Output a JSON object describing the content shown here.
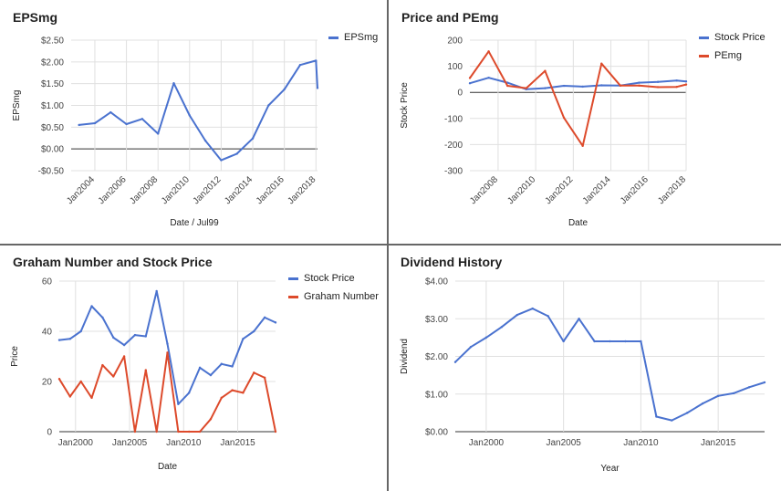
{
  "colors": {
    "blue": "#4a72cf",
    "red": "#dd4a2b",
    "grid": "#e0e0e0",
    "zero": "#333333"
  },
  "chart_data": [
    {
      "type": "line",
      "title": "EPSmg",
      "xlabel": "Date / Jul99",
      "ylabel": "EPSmg",
      "xlim": [
        2002.5,
        2018.1
      ],
      "ylim": [
        -0.5,
        2.5
      ],
      "x_ticks": [
        {
          "v": 2004,
          "label": "Jan2004"
        },
        {
          "v": 2006,
          "label": "Jan2006"
        },
        {
          "v": 2008,
          "label": "Jan2008"
        },
        {
          "v": 2010,
          "label": "Jan2010"
        },
        {
          "v": 2012,
          "label": "Jan2012"
        },
        {
          "v": 2014,
          "label": "Jan2014"
        },
        {
          "v": 2016,
          "label": "Jan2016"
        },
        {
          "v": 2018,
          "label": "Jan2018"
        }
      ],
      "y_ticks": [
        {
          "v": 2.5,
          "label": "$2.50"
        },
        {
          "v": 2.0,
          "label": "$2.00"
        },
        {
          "v": 1.5,
          "label": "$1.50"
        },
        {
          "v": 1.0,
          "label": "$1.00"
        },
        {
          "v": 0.5,
          "label": "$0.50"
        },
        {
          "v": 0.0,
          "label": "$0.00"
        },
        {
          "v": -0.5,
          "label": "-$0.50"
        }
      ],
      "series": [
        {
          "name": "EPSmg",
          "color": "#4a72cf",
          "x": [
            2003,
            2004,
            2005,
            2006,
            2007,
            2008,
            2009,
            2010,
            2011,
            2012,
            2013,
            2014,
            2015,
            2016,
            2017,
            2018,
            2018.1
          ],
          "y": [
            0.55,
            0.59,
            0.84,
            0.57,
            0.69,
            0.35,
            1.51,
            0.77,
            0.19,
            -0.26,
            -0.11,
            0.24,
            1.0,
            1.37,
            1.93,
            2.03,
            1.4
          ]
        }
      ]
    },
    {
      "type": "line",
      "title": "Price and PEmg",
      "xlabel": "Date",
      "ylabel": "Stock Price",
      "xlim": [
        2006.5,
        2018.0
      ],
      "ylim": [
        -300,
        200
      ],
      "x_ticks": [
        {
          "v": 2008,
          "label": "Jan2008"
        },
        {
          "v": 2010,
          "label": "Jan2010"
        },
        {
          "v": 2012,
          "label": "Jan2012"
        },
        {
          "v": 2014,
          "label": "Jan2014"
        },
        {
          "v": 2016,
          "label": "Jan2016"
        },
        {
          "v": 2018,
          "label": "Jan2018"
        }
      ],
      "y_ticks": [
        {
          "v": 200,
          "label": "200"
        },
        {
          "v": 100,
          "label": "100"
        },
        {
          "v": 0,
          "label": "0"
        },
        {
          "v": -100,
          "label": "-100"
        },
        {
          "v": -200,
          "label": "-200"
        },
        {
          "v": -300,
          "label": "-300"
        }
      ],
      "series": [
        {
          "name": "Stock Price",
          "color": "#4a72cf",
          "x": [
            2006.5,
            2007.5,
            2008.5,
            2009.5,
            2010.5,
            2011.5,
            2012.5,
            2013.5,
            2014.5,
            2015.5,
            2016.5,
            2017.5,
            2018.0
          ],
          "y": [
            35,
            56,
            37,
            12,
            16,
            25,
            22,
            27,
            26,
            37,
            40,
            45,
            42
          ]
        },
        {
          "name": "PEmg",
          "color": "#dd4a2b",
          "x": [
            2006.5,
            2007.5,
            2008.5,
            2009.5,
            2010.5,
            2011.5,
            2012.5,
            2013.5,
            2014.5,
            2015.5,
            2016.5,
            2017.5,
            2018.0
          ],
          "y": [
            55,
            157,
            25,
            16,
            82,
            -97,
            -205,
            110,
            26,
            26,
            20,
            21,
            30
          ]
        }
      ]
    },
    {
      "type": "line",
      "title": "Graham Number and Stock Price",
      "xlabel": "Date",
      "ylabel": "Price",
      "xlim": [
        1998.5,
        2018.5
      ],
      "ylim": [
        0,
        60
      ],
      "x_ticks": [
        {
          "v": 2000,
          "label": "Jan2000"
        },
        {
          "v": 2005,
          "label": "Jan2005"
        },
        {
          "v": 2010,
          "label": "Jan2010"
        },
        {
          "v": 2015,
          "label": "Jan2015"
        }
      ],
      "y_ticks": [
        {
          "v": 60,
          "label": "60"
        },
        {
          "v": 40,
          "label": "40"
        },
        {
          "v": 20,
          "label": "20"
        },
        {
          "v": 0,
          "label": "0"
        }
      ],
      "series": [
        {
          "name": "Stock Price",
          "color": "#4a72cf",
          "x": [
            1998.5,
            1999.5,
            2000.5,
            2001.5,
            2002.5,
            2003.5,
            2004.5,
            2005.5,
            2006.5,
            2007.5,
            2008.5,
            2009.5,
            2010.5,
            2011.5,
            2012.5,
            2013.5,
            2014.5,
            2015.5,
            2016.5,
            2017.5,
            2018.5
          ],
          "y": [
            36.5,
            37,
            40,
            50,
            45.5,
            37.5,
            34.5,
            38.5,
            38,
            56,
            35,
            11,
            15.5,
            25.5,
            22.5,
            27,
            26,
            37,
            40,
            45.5,
            43.5
          ]
        },
        {
          "name": "Graham Number",
          "color": "#dd4a2b",
          "x": [
            1998.5,
            1999.5,
            2000.5,
            2001.5,
            2002.5,
            2003.5,
            2004.5,
            2005.5,
            2006.5,
            2007.5,
            2008.5,
            2009.5,
            2010.5,
            2011.5,
            2012.5,
            2013.5,
            2014.5,
            2015.5,
            2016.5,
            2017.5,
            2018.5
          ],
          "y": [
            21,
            14,
            20,
            13.5,
            26.5,
            22,
            30,
            0,
            24.5,
            0,
            31.5,
            0,
            0,
            0,
            5,
            13.5,
            16.5,
            15.5,
            23.5,
            21.5,
            0
          ]
        }
      ]
    },
    {
      "type": "line",
      "title": "Dividend History",
      "xlabel": "Year",
      "ylabel": "Dividend",
      "xlim": [
        1998,
        2018
      ],
      "ylim": [
        0,
        4
      ],
      "x_ticks": [
        {
          "v": 2000,
          "label": "Jan2000"
        },
        {
          "v": 2005,
          "label": "Jan2005"
        },
        {
          "v": 2010,
          "label": "Jan2010"
        },
        {
          "v": 2015,
          "label": "Jan2015"
        }
      ],
      "y_ticks": [
        {
          "v": 4,
          "label": "$4.00"
        },
        {
          "v": 3,
          "label": "$3.00"
        },
        {
          "v": 2,
          "label": "$2.00"
        },
        {
          "v": 1,
          "label": "$1.00"
        },
        {
          "v": 0,
          "label": "$0.00"
        }
      ],
      "series": [
        {
          "name": "",
          "color": "#4a72cf",
          "x": [
            1998,
            1999,
            2000,
            2001,
            2002,
            2003,
            2004,
            2005,
            2006,
            2007,
            2008,
            2009,
            2010,
            2011,
            2012,
            2013,
            2014,
            2015,
            2016,
            2017,
            2018
          ],
          "y": [
            1.85,
            2.25,
            2.5,
            2.78,
            3.1,
            3.27,
            3.07,
            2.4,
            3.0,
            2.4,
            2.4,
            2.4,
            2.4,
            0.4,
            0.3,
            0.5,
            0.75,
            0.95,
            1.02,
            1.18,
            1.31
          ]
        }
      ]
    }
  ]
}
